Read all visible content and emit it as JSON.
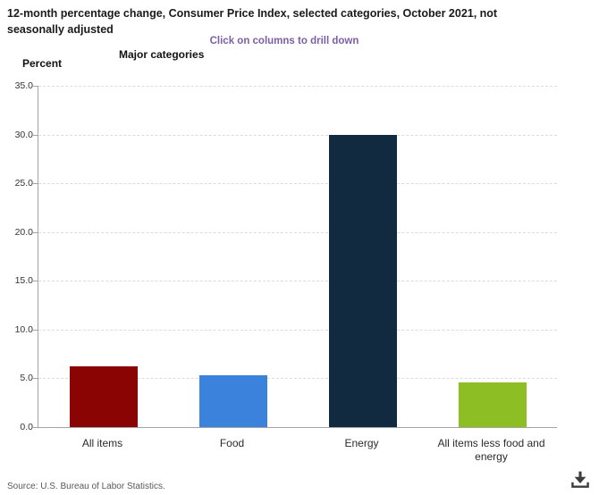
{
  "header": {
    "title_line1": "12-month percentage change, Consumer Price Index, selected categories, October 2021, not",
    "title_line2": "seasonally adjusted",
    "drilldown_hint": "Click on columns to drill down"
  },
  "chart_data": {
    "type": "bar",
    "title": "12-month percentage change, Consumer Price Index, selected categories, October 2021, not seasonally adjusted",
    "subtitle": "Click on columns to drill down",
    "xlabel": "Major categories",
    "ylabel": "Percent",
    "categories": [
      "All items",
      "Food",
      "Energy",
      "All items less food and energy"
    ],
    "values": [
      6.2,
      5.3,
      30.0,
      4.6
    ],
    "colors": [
      "#8b0404",
      "#3b82dc",
      "#122a3f",
      "#8dbe23"
    ],
    "ylim": [
      0,
      35
    ],
    "ytick_step": 5,
    "ytick_decimals": 1,
    "grid": "horizontal-dashed",
    "legend_position": "none"
  },
  "colors": {
    "accent_hint": "#7b5ea8",
    "axis": "#a3a3a3",
    "gridline": "#dcdcdc"
  },
  "footer": {
    "source": "Source: U.S. Bureau of Labor Statistics.",
    "download_icon": "download-icon"
  }
}
